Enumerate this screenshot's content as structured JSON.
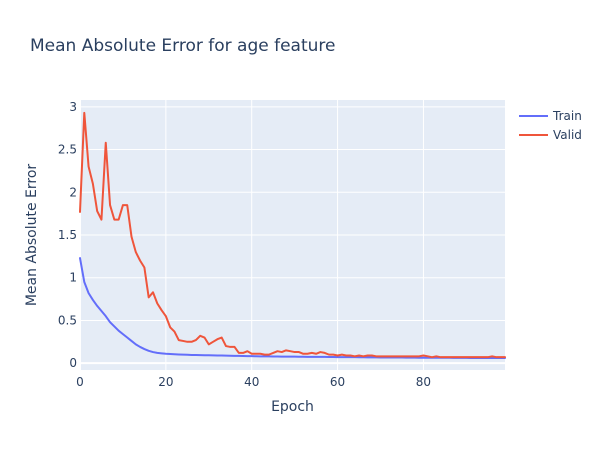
{
  "chart_data": {
    "type": "line",
    "title": "Mean Absolute Error for age feature",
    "xlabel": "Epoch",
    "ylabel": "Mean Absolute Error",
    "xlim": [
      0,
      99
    ],
    "ylim": [
      -0.08,
      3.08
    ],
    "x_ticks": [
      0,
      20,
      40,
      60,
      80
    ],
    "y_ticks": [
      0,
      0.5,
      1,
      1.5,
      2,
      2.5,
      3
    ],
    "x_tick_labels": [
      "0",
      "20",
      "40",
      "60",
      "80"
    ],
    "y_tick_labels": [
      "0",
      "0.5",
      "1",
      "1.5",
      "2",
      "2.5",
      "3"
    ],
    "grid": true,
    "legend_position": "top-right",
    "series": [
      {
        "name": "Train",
        "color": "#636efa",
        "values": [
          1.23,
          0.95,
          0.82,
          0.74,
          0.67,
          0.61,
          0.55,
          0.48,
          0.43,
          0.38,
          0.34,
          0.3,
          0.26,
          0.22,
          0.19,
          0.165,
          0.145,
          0.13,
          0.12,
          0.115,
          0.11,
          0.107,
          0.104,
          0.102,
          0.1,
          0.098,
          0.096,
          0.095,
          0.094,
          0.093,
          0.092,
          0.091,
          0.09,
          0.089,
          0.088,
          0.087,
          0.086,
          0.085,
          0.084,
          0.083,
          0.082,
          0.081,
          0.08,
          0.08,
          0.079,
          0.078,
          0.078,
          0.077,
          0.077,
          0.076,
          0.076,
          0.075,
          0.075,
          0.074,
          0.074,
          0.073,
          0.073,
          0.073,
          0.072,
          0.072,
          0.071,
          0.071,
          0.07,
          0.07,
          0.07,
          0.069,
          0.069,
          0.068,
          0.068,
          0.068,
          0.067,
          0.067,
          0.067,
          0.066,
          0.066,
          0.066,
          0.065,
          0.065,
          0.065,
          0.064,
          0.064,
          0.064,
          0.064,
          0.063,
          0.063,
          0.063,
          0.063,
          0.062,
          0.062,
          0.062,
          0.062,
          0.061,
          0.061,
          0.061,
          0.061,
          0.06,
          0.06,
          0.06,
          0.06,
          0.06
        ]
      },
      {
        "name": "Valid",
        "color": "#ef553b",
        "values": [
          1.77,
          2.93,
          2.3,
          2.1,
          1.78,
          1.68,
          2.58,
          1.85,
          1.68,
          1.68,
          1.85,
          1.85,
          1.48,
          1.3,
          1.2,
          1.12,
          0.77,
          0.83,
          0.7,
          0.62,
          0.55,
          0.42,
          0.37,
          0.27,
          0.26,
          0.25,
          0.25,
          0.27,
          0.32,
          0.3,
          0.22,
          0.25,
          0.28,
          0.3,
          0.2,
          0.19,
          0.19,
          0.12,
          0.12,
          0.14,
          0.11,
          0.11,
          0.11,
          0.1,
          0.1,
          0.12,
          0.14,
          0.13,
          0.15,
          0.14,
          0.13,
          0.13,
          0.11,
          0.11,
          0.12,
          0.11,
          0.13,
          0.12,
          0.1,
          0.1,
          0.09,
          0.1,
          0.09,
          0.09,
          0.08,
          0.09,
          0.08,
          0.09,
          0.09,
          0.08,
          0.08,
          0.08,
          0.08,
          0.08,
          0.08,
          0.08,
          0.08,
          0.08,
          0.08,
          0.08,
          0.09,
          0.08,
          0.07,
          0.08,
          0.07,
          0.07,
          0.07,
          0.07,
          0.07,
          0.07,
          0.07,
          0.07,
          0.07,
          0.07,
          0.07,
          0.07,
          0.08,
          0.07,
          0.07,
          0.07
        ]
      }
    ]
  }
}
